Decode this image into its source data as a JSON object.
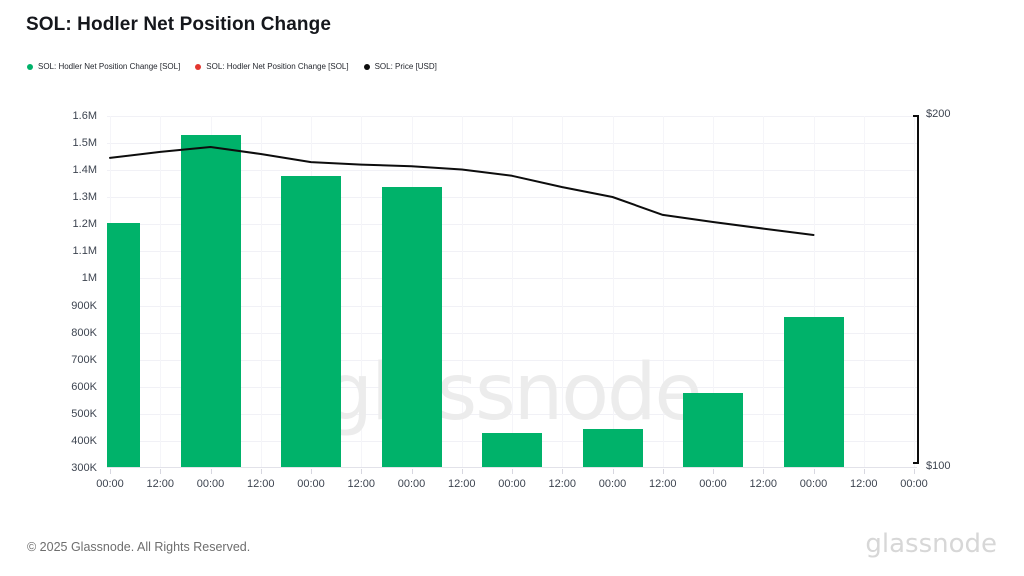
{
  "header": {
    "title": "SOL: Hodler Net Position Change"
  },
  "legend": {
    "items": [
      {
        "label": "SOL: Hodler Net Position Change [SOL]",
        "color": "#00b26a"
      },
      {
        "label": "SOL: Hodler Net Position Change [SOL]",
        "color": "#e3362f"
      },
      {
        "label": "SOL: Price [USD]",
        "color": "#0d0d0d"
      }
    ]
  },
  "chart_data": {
    "type": "bar+line",
    "title": "SOL: Hodler Net Position Change",
    "grid": true,
    "legend_position": "top-left",
    "watermark": "glassnode",
    "x_tick_labels": [
      "00:00",
      "12:00",
      "00:00",
      "12:00",
      "00:00",
      "12:00",
      "00:00",
      "12:00",
      "00:00",
      "12:00",
      "00:00",
      "12:00",
      "00:00",
      "12:00",
      "00:00",
      "12:00",
      "00:00"
    ],
    "left_axis": {
      "labels": [
        "1.6M",
        "1.5M",
        "1.4M",
        "1.3M",
        "1.2M",
        "1.1M",
        "1M",
        "900K",
        "800K",
        "700K",
        "600K",
        "500K",
        "400K",
        "300K"
      ],
      "min": 300000,
      "max": 1600000
    },
    "right_axis": {
      "top_label": "$200",
      "bottom_label": "$100",
      "min": 100,
      "max": 200
    },
    "series": [
      {
        "name": "SOL: Hodler Net Position Change [SOL]",
        "type": "bar",
        "color": "#00b26a",
        "points": [
          {
            "tick": 0,
            "x_label": "00:00",
            "value": 1200000
          },
          {
            "tick": 2,
            "x_label": "00:00",
            "value": 1525000
          },
          {
            "tick": 4,
            "x_label": "00:00",
            "value": 1375000
          },
          {
            "tick": 6,
            "x_label": "00:00",
            "value": 1335000
          },
          {
            "tick": 8,
            "x_label": "00:00",
            "value": 425000
          },
          {
            "tick": 10,
            "x_label": "00:00",
            "value": 440000
          },
          {
            "tick": 12,
            "x_label": "00:00",
            "value": 575000
          },
          {
            "tick": 14,
            "x_label": "00:00",
            "value": 855000
          }
        ]
      },
      {
        "name": "SOL: Price [USD]",
        "type": "line",
        "color": "#0d0d0d",
        "points": [
          {
            "tick": 0,
            "value": 188.1
          },
          {
            "tick": 1,
            "value": 189.8
          },
          {
            "tick": 2,
            "value": 191.2
          },
          {
            "tick": 3,
            "value": 189.2
          },
          {
            "tick": 4,
            "value": 186.9
          },
          {
            "tick": 5,
            "value": 186.2
          },
          {
            "tick": 6,
            "value": 185.7
          },
          {
            "tick": 7,
            "value": 184.8
          },
          {
            "tick": 8,
            "value": 183.0
          },
          {
            "tick": 9,
            "value": 179.8
          },
          {
            "tick": 10,
            "value": 177.0
          },
          {
            "tick": 11,
            "value": 171.9
          },
          {
            "tick": 12,
            "value": 169.9
          },
          {
            "tick": 13,
            "value": 168.0
          },
          {
            "tick": 14,
            "value": 166.2
          }
        ]
      }
    ]
  },
  "footer": {
    "copyright": "© 2025 Glassnode. All Rights Reserved.",
    "brand": "glassnode"
  }
}
